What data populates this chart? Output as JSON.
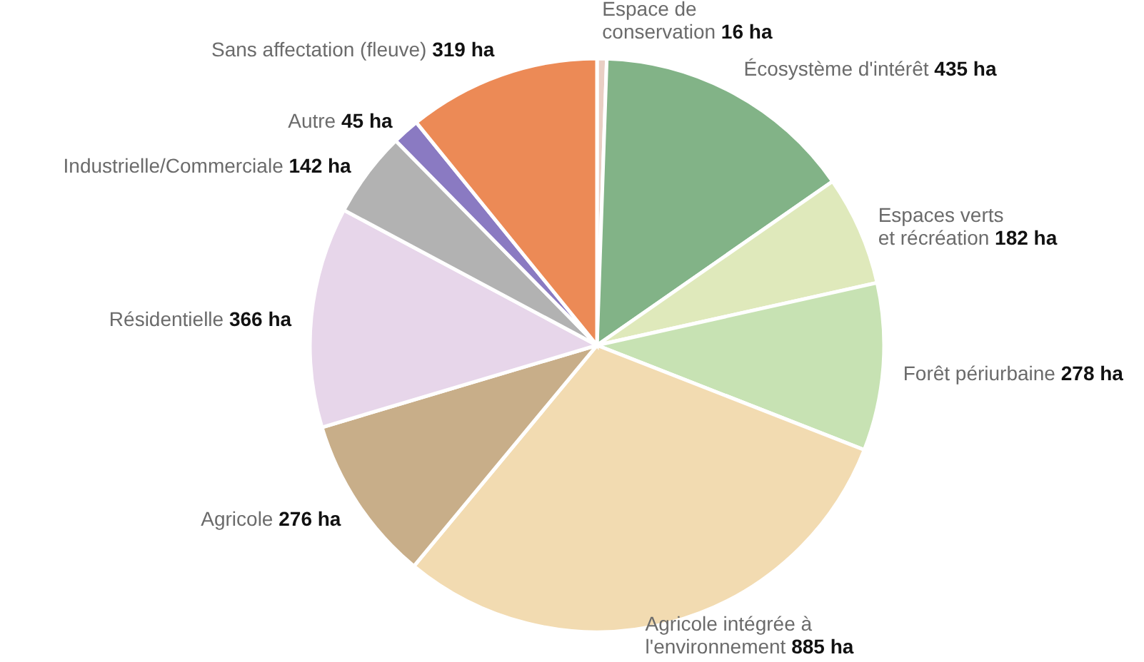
{
  "chart_data": {
    "type": "pie",
    "categories": [
      "Espace de\nconservation",
      "Écosystème d'intérêt",
      "Espaces verts\net récréation",
      "Forêt périurbaine",
      "Agricole intégrée à\nl'environnement",
      "Agricole",
      "Résidentielle",
      "Industrielle/Commerciale",
      "Autre",
      "Sans affectation (fleuve)"
    ],
    "values": [
      16,
      435,
      182,
      278,
      885,
      276,
      366,
      142,
      45,
      319
    ],
    "value_labels": [
      "16 ha",
      "435 ha",
      "182 ha",
      "278 ha",
      "885 ha",
      "276 ha",
      "366 ha",
      "142 ha",
      "45 ha",
      "319 ha"
    ],
    "colors": [
      "#e9cfc4",
      "#82b387",
      "#dfe9bb",
      "#c7e2b3",
      "#f2dbb1",
      "#c8ae89",
      "#e7d6ea",
      "#b2b2b2",
      "#8a7ac2",
      "#ec8a56"
    ]
  }
}
